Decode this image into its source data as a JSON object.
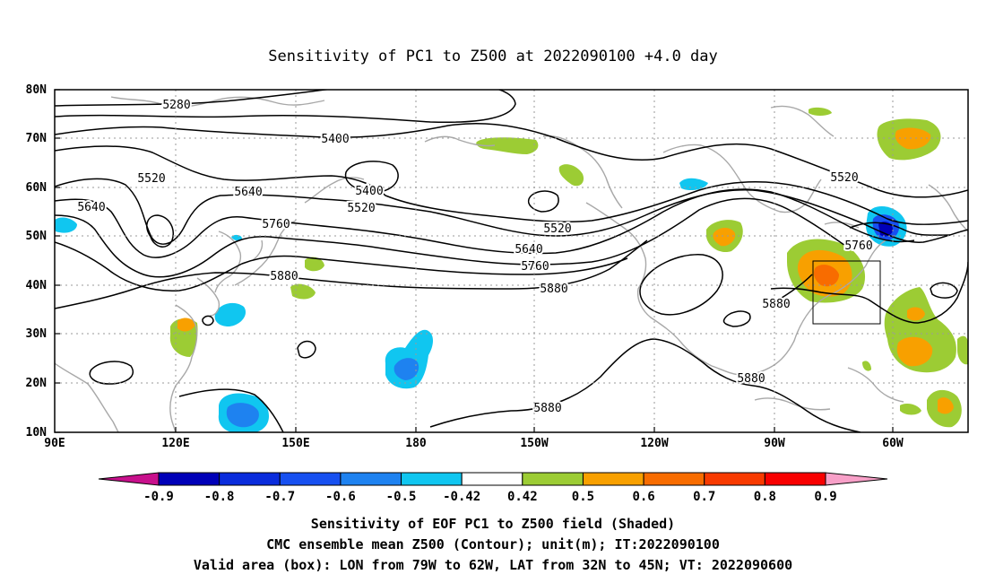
{
  "title": "Sensitivity of PC1 to Z500 at 2022090100 +4.0 day",
  "map": {
    "lon_ticks": [
      "90E",
      "120E",
      "150E",
      "180",
      "150W",
      "120W",
      "90W",
      "60W"
    ],
    "lat_ticks": [
      "80N",
      "70N",
      "60N",
      "50N",
      "40N",
      "30N",
      "20N",
      "10N"
    ],
    "contour_labels": [
      "5280",
      "5400",
      "5400",
      "5520",
      "5520",
      "5520",
      "5520",
      "5640",
      "5640",
      "5640",
      "5760",
      "5760",
      "5760",
      "5880",
      "5880",
      "5880",
      "5880",
      "5880"
    ],
    "valid_box": {
      "lon_from": "79W",
      "lon_to": "62W",
      "lat_from": "32N",
      "lat_to": "45N"
    }
  },
  "colorbar": {
    "labels": [
      "-0.9",
      "-0.8",
      "-0.7",
      "-0.6",
      "-0.5",
      "-0.42",
      "0.42",
      "0.5",
      "0.6",
      "0.7",
      "0.8",
      "0.9"
    ],
    "colors": [
      "#0000b8",
      "#0a2cdc",
      "#1750f0",
      "#1e82f0",
      "#10c6f0",
      "#ffffff",
      "#9ccc34",
      "#f8a000",
      "#f86c00",
      "#f83a00",
      "#f80000"
    ],
    "under_color": "#c8108c",
    "over_color": "#f8a0c8"
  },
  "caption": {
    "line1": "Sensitivity of EOF PC1 to Z500 field (Shaded)",
    "line2": "CMC ensemble mean Z500 (Contour); unit(m); IT:2022090100",
    "line3": "Valid area (box): LON from 79W to 62W, LAT from 32N to 45N; VT: 2022090600"
  }
}
